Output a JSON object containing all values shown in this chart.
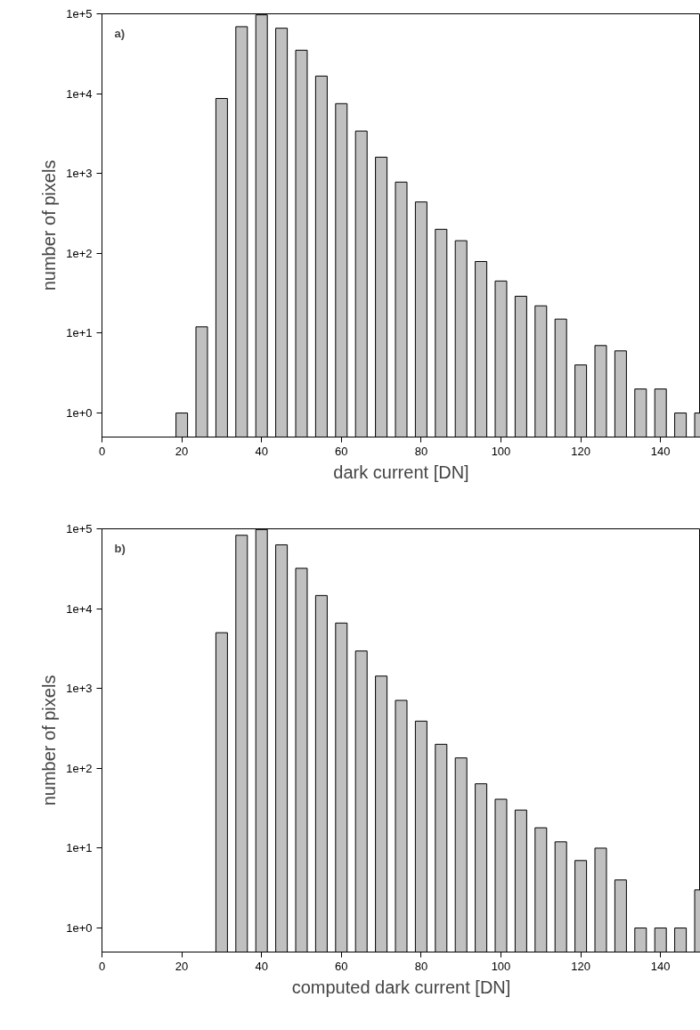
{
  "chart_data": [
    {
      "type": "bar",
      "annotations": [
        "a)"
      ],
      "xlabel": "dark current [DN]",
      "ylabel": "number of pixels",
      "log": "y",
      "grid": false,
      "x": [
        20,
        25,
        30,
        35,
        40,
        45,
        50,
        55,
        60,
        65,
        70,
        75,
        80,
        85,
        90,
        95,
        100,
        105,
        110,
        115,
        120,
        125,
        130,
        135,
        140,
        145,
        150
      ],
      "values": [
        1,
        12,
        8700,
        69000,
        97000,
        66000,
        35000,
        16600,
        7500,
        3400,
        1600,
        780,
        440,
        200,
        144,
        79,
        45,
        29,
        22,
        15,
        4,
        7,
        6,
        2,
        2,
        1,
        1
      ],
      "color": "#c0c0c0",
      "xlim": [
        0,
        150
      ],
      "xticks": [
        0,
        20,
        40,
        60,
        80,
        100,
        120,
        140
      ],
      "ylim": [
        0.5,
        100000
      ],
      "yticks": [
        {
          "value": 1,
          "label": "1e+0"
        },
        {
          "value": 10,
          "label": "1e+1"
        },
        {
          "value": 100,
          "label": "1e+2"
        },
        {
          "value": 1000,
          "label": "1e+3"
        },
        {
          "value": 10000,
          "label": "1e+4"
        },
        {
          "value": 100000,
          "label": "1e+5"
        }
      ]
    },
    {
      "type": "bar",
      "annotations": [
        "b)"
      ],
      "xlabel": "computed dark current [DN]",
      "ylabel": "number of pixels",
      "log": "y",
      "grid": false,
      "x": [
        30,
        35,
        40,
        45,
        50,
        55,
        60,
        65,
        70,
        75,
        80,
        85,
        90,
        95,
        100,
        105,
        110,
        115,
        120,
        125,
        130,
        135,
        140,
        145,
        150
      ],
      "values": [
        5000,
        83000,
        98000,
        63000,
        32000,
        14600,
        6600,
        2950,
        1430,
        710,
        390,
        200,
        135,
        64,
        41,
        30,
        18,
        12,
        7,
        10,
        4,
        1,
        1,
        1,
        3
      ],
      "color": "#c0c0c0",
      "xlim": [
        0,
        150
      ],
      "xticks": [
        0,
        20,
        40,
        60,
        80,
        100,
        120,
        140
      ],
      "ylim": [
        0.5,
        100000
      ],
      "yticks": [
        {
          "value": 1,
          "label": "1e+0"
        },
        {
          "value": 10,
          "label": "1e+1"
        },
        {
          "value": 100,
          "label": "1e+2"
        },
        {
          "value": 1000,
          "label": "1e+3"
        },
        {
          "value": 10000,
          "label": "1e+4"
        },
        {
          "value": 100000,
          "label": "1e+5"
        }
      ]
    }
  ]
}
